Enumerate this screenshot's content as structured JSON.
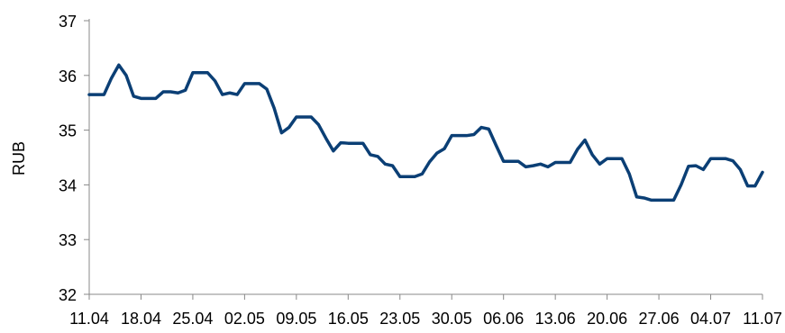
{
  "chart_data": {
    "type": "line",
    "title": "",
    "xlabel": "",
    "ylabel": "RUB",
    "ylim": [
      32,
      37
    ],
    "yticks": [
      32,
      33,
      34,
      35,
      36,
      37
    ],
    "grid": false,
    "legend": "none",
    "color": "#0b3f75",
    "xticklabels": [
      "11.04",
      "18.04",
      "25.04",
      "02.05",
      "09.05",
      "16.05",
      "23.05",
      "30.05",
      "06.06",
      "13.06",
      "20.06",
      "27.06",
      "04.07",
      "11.07"
    ],
    "series": [
      {
        "values": [
          35.65,
          35.65,
          35.65,
          35.95,
          36.19,
          36.0,
          35.62,
          35.58,
          35.58,
          35.58,
          35.7,
          35.7,
          35.68,
          35.73,
          36.05,
          36.05,
          36.05,
          35.9,
          35.65,
          35.68,
          35.65,
          35.85,
          35.85,
          35.85,
          35.75,
          35.4,
          34.95,
          35.05,
          35.24,
          35.24,
          35.24,
          35.1,
          34.85,
          34.62,
          34.77,
          34.76,
          34.76,
          34.76,
          34.55,
          34.52,
          34.38,
          34.35,
          34.15,
          34.15,
          34.15,
          34.2,
          34.42,
          34.58,
          34.66,
          34.9,
          34.9,
          34.9,
          34.92,
          35.05,
          35.02,
          34.72,
          34.43,
          34.43,
          34.43,
          34.33,
          34.35,
          34.38,
          34.33,
          34.41,
          34.41,
          34.41,
          34.65,
          34.82,
          34.55,
          34.38,
          34.48,
          34.48,
          34.48,
          34.2,
          33.78,
          33.76,
          33.72,
          33.72,
          33.72,
          33.72,
          34.0,
          34.34,
          34.35,
          34.28,
          34.48,
          34.48,
          34.48,
          34.44,
          34.28,
          33.98,
          33.98,
          34.23
        ]
      }
    ]
  }
}
